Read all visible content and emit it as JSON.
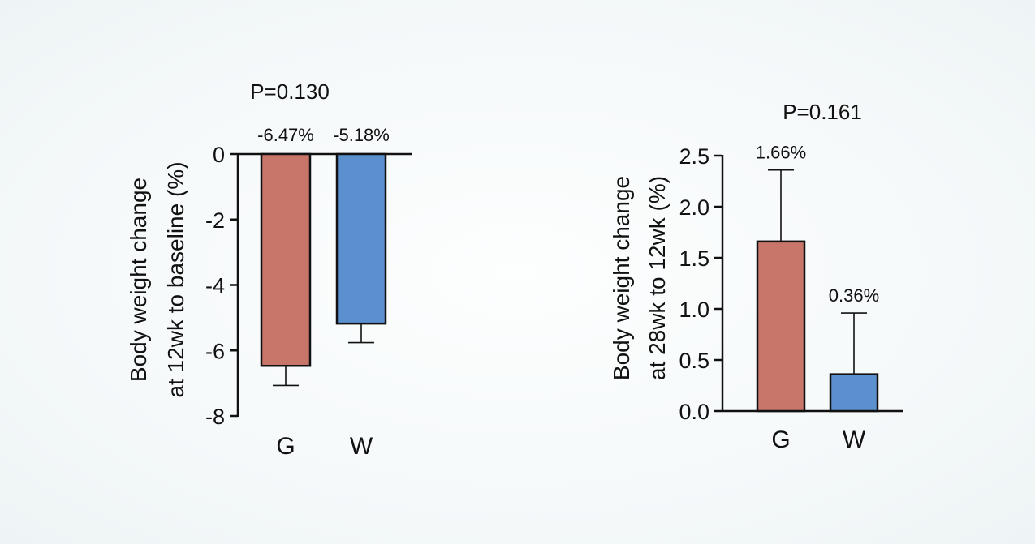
{
  "chart_data": [
    {
      "type": "bar",
      "title": "",
      "annotation": "P=0.130",
      "ylabel_lines": [
        "Body weight change",
        "at 12wk to baseline (%)"
      ],
      "xlabel": "",
      "categories": [
        "G",
        "W"
      ],
      "values": [
        -6.47,
        -5.18
      ],
      "error": [
        0.6,
        0.58
      ],
      "data_labels": [
        "-6.47%",
        "-5.18%"
      ],
      "ylim": [
        -8,
        0
      ],
      "yticks": [
        0,
        -2,
        -4,
        -6,
        -8
      ],
      "ytick_labels": [
        "0",
        "-2",
        "-4",
        "-6",
        "-8"
      ],
      "colors": [
        "#c8766a",
        "#5b90cf"
      ],
      "grid": false
    },
    {
      "type": "bar",
      "title": "",
      "annotation": "P=0.161",
      "ylabel_lines": [
        "Body weight change",
        "at 28wk to 12wk (%)"
      ],
      "xlabel": "",
      "categories": [
        "G",
        "W"
      ],
      "values": [
        1.66,
        0.36
      ],
      "error": [
        0.7,
        0.6
      ],
      "data_labels": [
        "1.66%",
        "0.36%"
      ],
      "ylim": [
        0,
        2.5
      ],
      "yticks": [
        0,
        0.5,
        1.0,
        1.5,
        2.0,
        2.5
      ],
      "ytick_labels": [
        "0.0",
        "0.5",
        "1.0",
        "1.5",
        "2.0",
        "2.5"
      ],
      "colors": [
        "#c8766a",
        "#5b90cf"
      ],
      "grid": false
    }
  ]
}
